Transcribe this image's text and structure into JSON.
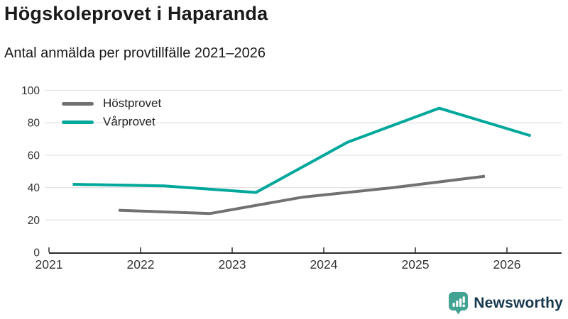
{
  "header": {
    "title": "Högskoleprovet i Haparanda",
    "subtitle": "Antal anmälda per provtillfälle 2021–2026"
  },
  "chart_data": {
    "type": "line",
    "title": "Högskoleprovet i Haparanda",
    "subtitle": "Antal anmälda per provtillfälle 2021–2026",
    "xlabel": "",
    "ylabel": "",
    "xlim": [
      2021,
      2026.6
    ],
    "ylim": [
      0,
      100
    ],
    "yticks": [
      0,
      20,
      40,
      60,
      80,
      100
    ],
    "xticks": [
      2021,
      2022,
      2023,
      2024,
      2025,
      2026
    ],
    "grid": true,
    "legend_position": "top-left",
    "series": [
      {
        "name": "Höstprovet",
        "color": "#717171",
        "points": [
          {
            "x": 2021.76,
            "y": 26
          },
          {
            "x": 2022.76,
            "y": 24
          },
          {
            "x": 2023.76,
            "y": 34
          },
          {
            "x": 2024.76,
            "y": 40
          },
          {
            "x": 2025.76,
            "y": 47
          }
        ]
      },
      {
        "name": "Vårprovet",
        "color": "#00a79b",
        "points": [
          {
            "x": 2021.26,
            "y": 42
          },
          {
            "x": 2022.26,
            "y": 41
          },
          {
            "x": 2023.26,
            "y": 37
          },
          {
            "x": 2024.26,
            "y": 68
          },
          {
            "x": 2025.26,
            "y": 89
          },
          {
            "x": 2026.26,
            "y": 72
          }
        ]
      }
    ]
  },
  "footer": {
    "brand": "Newsworthy"
  },
  "colors": {
    "accent_teal": "#00a79b",
    "series_gray": "#717171",
    "grid": "#e4e4e4",
    "axis": "#2b2b2b",
    "tick_text": "#333333",
    "brand_navy": "#16384e",
    "brand_icon_teal": "#42a393"
  }
}
